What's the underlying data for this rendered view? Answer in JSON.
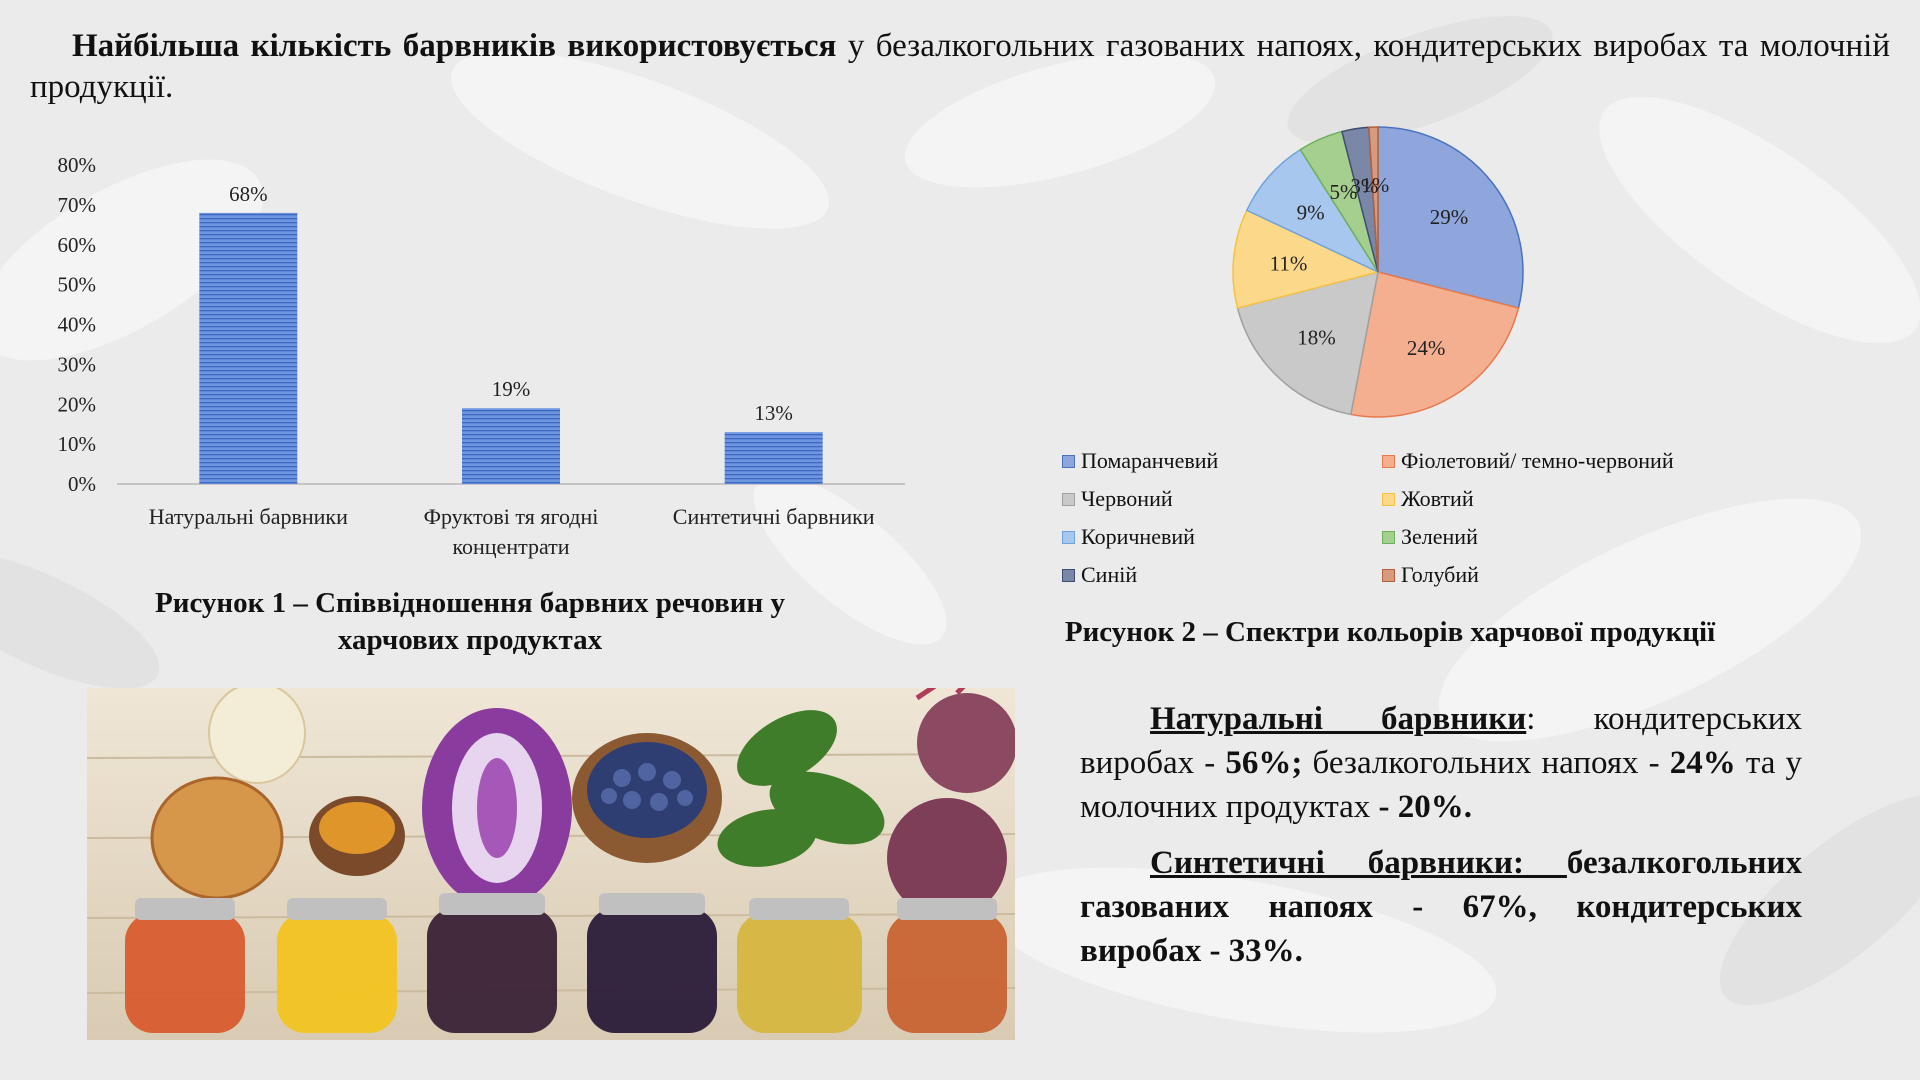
{
  "intro": {
    "bold": "Найбільша кількість барвників використовується",
    "rest": " у безалкогольних газованих напоях, кондитерських виробах  та молочній продукції."
  },
  "figure1": {
    "caption_line1": "Рисунок 1 – Співвідношення барвних речовин у",
    "caption_line2": "харчових продуктах"
  },
  "figure2": {
    "caption": "Рисунок 2 – Спектри кольорів харчової продукції"
  },
  "chart_data": [
    {
      "type": "bar",
      "categories": [
        "Натуральні барвники",
        "Фруктові тя ягодні концентрати",
        "Синтетичні барвники"
      ],
      "category_lines": [
        [
          "Натуральні барвники"
        ],
        [
          "Фруктові тя ягодні",
          "концентрати"
        ],
        [
          "Синтетичні барвники"
        ]
      ],
      "values": [
        68,
        19,
        13
      ],
      "data_labels": [
        "68%",
        "19%",
        "13%"
      ],
      "ylim": [
        0,
        80
      ],
      "ytick_labels": [
        "0%",
        "10%",
        "20%",
        "30%",
        "40%",
        "50%",
        "60%",
        "70%",
        "80%"
      ],
      "grid": false,
      "bar_color": "#4f7ed6"
    },
    {
      "type": "pie",
      "labels": [
        "Помаранчевий",
        "Фіолетовий/ темно-червоний",
        "Червоний",
        "Жовтий",
        "Коричневий",
        "Зелений",
        "Синій",
        "Голубий"
      ],
      "values": [
        29,
        24,
        18,
        11,
        9,
        5,
        3,
        1
      ],
      "data_labels": [
        "29%",
        "24%",
        "18%",
        "11%",
        "9%",
        "5%",
        "3%",
        "1%"
      ],
      "colors": [
        "#8fa6dc",
        "#f4ae90",
        "#c9c9c9",
        "#fcd98a",
        "#a8c7ee",
        "#a5cf8f",
        "#7b87a6",
        "#d89a7c"
      ],
      "stroke_colors": [
        "#4a72c0",
        "#e8794d",
        "#a0a0a0",
        "#f5c243",
        "#6fa3de",
        "#6db05a",
        "#3f4d70",
        "#b5603d"
      ],
      "legend_position": "bottom"
    }
  ],
  "notes": {
    "p1_title": "Натуральні барвники",
    "p1_text1": ":   кондитерських виробах - ",
    "p1_v1": "56%;",
    "p1_text2": " безалкогольних напоях - ",
    "p1_v2": "24%",
    "p1_text3": " та у молочних  продуктах ",
    "p1_v3": "- 20%.",
    "p2_title": "Синтетичні барвники: ",
    "p2_text": " безалкогольних газованих напоях - 67%,  кондитерських виробах - 33%."
  },
  "photo": {
    "icon": "food-colorants-photo"
  }
}
